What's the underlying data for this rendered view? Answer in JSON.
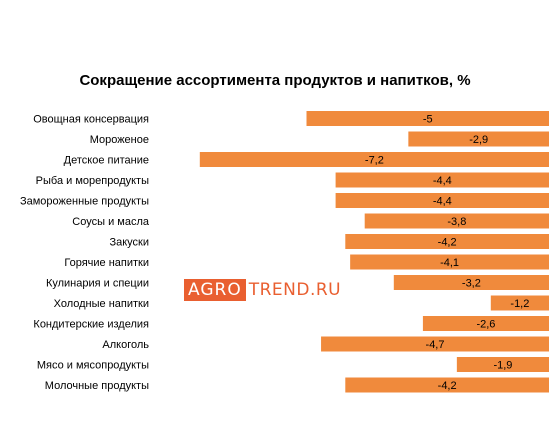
{
  "chart_data": {
    "type": "bar",
    "orientation": "horizontal",
    "title": "Сокращение ассортимента продуктов и напитков, %",
    "categories": [
      "Овощная консервация",
      "Мороженое",
      "Детское питание",
      "Рыба и морепродукты",
      "Замороженные продукты",
      "Соусы и масла",
      "Закуски",
      "Горячие напитки",
      "Кулинария и специи",
      "Холодные напитки",
      "Кондитерские изделия",
      "Алкоголь",
      "Мясо и мясопродукты",
      "Молочные продукты"
    ],
    "values": [
      -5,
      -2.9,
      -7.2,
      -4.4,
      -4.4,
      -3.8,
      -4.2,
      -4.1,
      -3.2,
      -1.2,
      -2.6,
      -4.7,
      -1.9,
      -4.2
    ],
    "value_labels": [
      "-5",
      "-2,9",
      "-7,2",
      "-4,4",
      "-4,4",
      "-3,8",
      "-4,2",
      "-4,1",
      "-3,2",
      "-1,2",
      "-2,6",
      "-4,7",
      "-1,9",
      "-4,2"
    ],
    "bar_color": "#f08a3c",
    "grid": false,
    "legend": "none"
  },
  "watermark": {
    "boxed": "AGRO",
    "rest": "TREND.RU",
    "color": "#e8521f"
  }
}
